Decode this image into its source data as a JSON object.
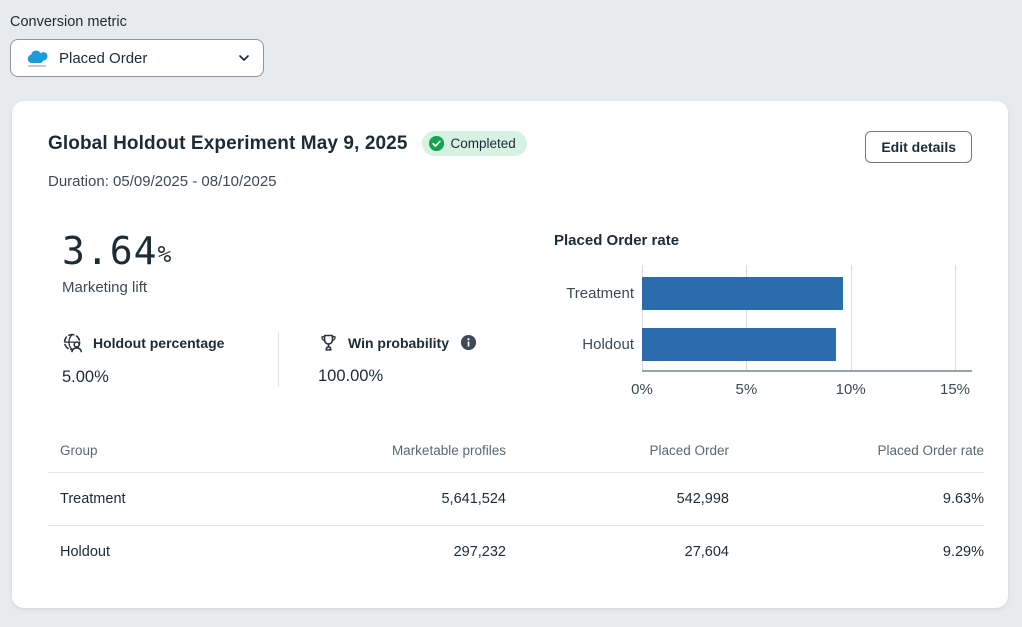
{
  "filter": {
    "label": "Conversion metric",
    "selected": "Placed Order"
  },
  "card": {
    "title": "Global Holdout Experiment May 9, 2025",
    "status": "Completed",
    "duration": "Duration: 05/09/2025 - 08/10/2025",
    "edit_button": "Edit details",
    "lift": {
      "value": "3.64",
      "unit": "%",
      "label": "Marketing lift"
    },
    "metrics": [
      {
        "icon": "globe-person-icon",
        "label": "Holdout percentage",
        "value": "5.00%"
      },
      {
        "icon": "trophy-icon",
        "label": "Win probability",
        "value": "100.00%"
      }
    ]
  },
  "chart_data": {
    "type": "bar",
    "orientation": "horizontal",
    "title": "Placed Order rate",
    "categories": [
      "Treatment",
      "Holdout"
    ],
    "values": [
      9.63,
      9.29
    ],
    "unit": "%",
    "xlim": [
      0,
      15
    ],
    "ticks": [
      0,
      5,
      10,
      15
    ],
    "tick_labels": [
      "0%",
      "5%",
      "10%",
      "15%"
    ],
    "bar_color": "#2a6cae",
    "grid": true,
    "legend": false
  },
  "table": {
    "columns": [
      "Group",
      "Marketable profiles",
      "Placed Order",
      "Placed Order rate"
    ],
    "rows": [
      [
        "Treatment",
        "5,641,524",
        "542,998",
        "9.63%"
      ],
      [
        "Holdout",
        "297,232",
        "27,604",
        "9.29%"
      ]
    ]
  },
  "colors": {
    "accent_blue": "#2a6cae",
    "badge_bg": "#d7f2e2",
    "badge_green": "#15a251",
    "page_bg": "#e8ebee"
  }
}
